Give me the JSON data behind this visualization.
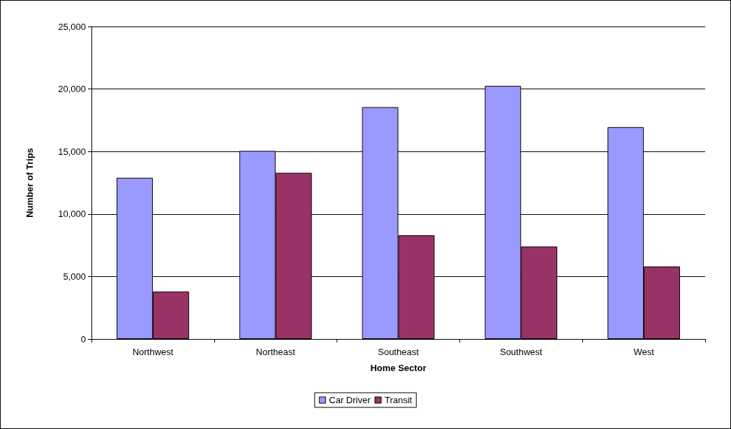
{
  "chart_data": {
    "type": "bar",
    "xlabel": "Home Sector",
    "ylabel": "Number of Trips",
    "categories": [
      "Northwest",
      "Northeast",
      "Southeast",
      "Southwest",
      "West"
    ],
    "series": [
      {
        "name": "Car Driver",
        "color": "#9999ff",
        "values": [
          12900,
          15050,
          18550,
          20250,
          16950
        ]
      },
      {
        "name": "Transit",
        "color": "#993366",
        "values": [
          3800,
          13300,
          8300,
          7400,
          5800
        ]
      }
    ],
    "ylim": [
      0,
      25000
    ],
    "yticks": [
      {
        "value": 0,
        "label": "0"
      },
      {
        "value": 5000,
        "label": "5,000"
      },
      {
        "value": 10000,
        "label": "10,000"
      },
      {
        "value": 15000,
        "label": "15,000"
      },
      {
        "value": 20000,
        "label": "20,000"
      },
      {
        "value": 25000,
        "label": "25,000"
      }
    ],
    "grid": "y",
    "legend": "bottom"
  }
}
